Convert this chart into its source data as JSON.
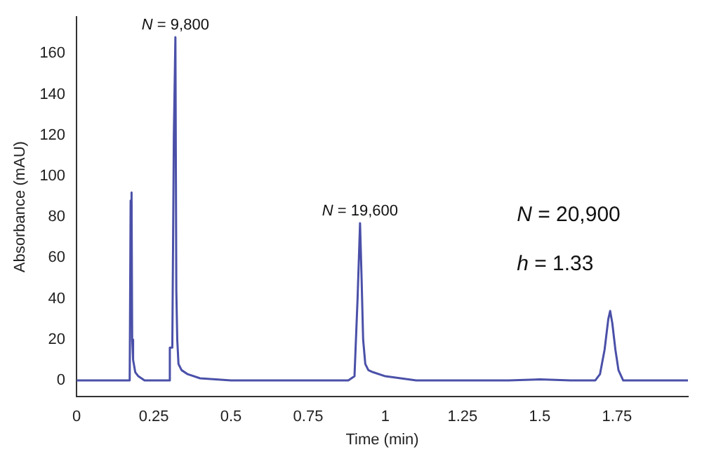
{
  "chart_data": {
    "type": "line",
    "xlabel": "Time (min)",
    "ylabel": "Absorbance (mAU)",
    "xlim": [
      0,
      1.98
    ],
    "xticks": [
      0,
      0.25,
      0.5,
      0.75,
      1,
      1.25,
      1.5,
      1.75
    ],
    "ylim": [
      -8,
      178
    ],
    "yticks": [
      0,
      20,
      40,
      60,
      80,
      100,
      120,
      140,
      160
    ],
    "grid": false,
    "legend": false,
    "marker": "none",
    "line_style": "solid",
    "series": [
      {
        "color": "#4a50a8",
        "x": [
          0,
          0.16,
          0.172,
          0.175,
          0.178,
          0.18,
          0.183,
          0.19,
          0.2,
          0.22,
          0.25,
          0.3,
          0.302,
          0.31,
          0.315,
          0.32,
          0.323,
          0.326,
          0.33,
          0.34,
          0.36,
          0.4,
          0.5,
          0.7,
          0.88,
          0.9,
          0.91,
          0.918,
          0.923,
          0.928,
          0.935,
          0.945,
          0.96,
          1.0,
          1.1,
          1.4,
          1.5,
          1.6,
          1.68,
          1.695,
          1.71,
          1.722,
          1.728,
          1.735,
          1.745,
          1.755,
          1.77,
          1.85,
          1.98
        ],
        "values": [
          0,
          0,
          0,
          88,
          92,
          20,
          10,
          4,
          2,
          0,
          0,
          0,
          16,
          16,
          120,
          168,
          44,
          20,
          8,
          5,
          3,
          1,
          0,
          0,
          0,
          2,
          40,
          77,
          50,
          20,
          8,
          5,
          4,
          2,
          0,
          0,
          0.5,
          0,
          0,
          3,
          15,
          30,
          34,
          28,
          15,
          5,
          0,
          0,
          0
        ]
      }
    ],
    "annotations": [
      {
        "text": "N = 9,800",
        "x": 0.32,
        "y": 168
      },
      {
        "text": "N = 19,600",
        "x": 0.918,
        "y": 77
      },
      "N = 20,900",
      "h = 1.33"
    ]
  }
}
